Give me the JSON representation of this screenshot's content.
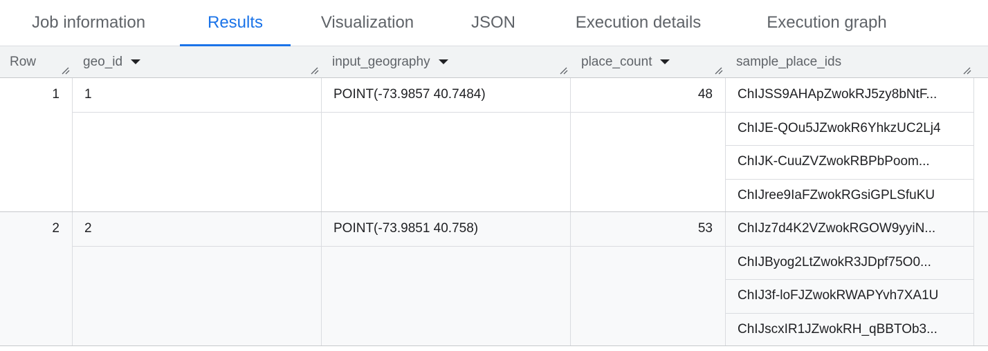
{
  "tabs": [
    {
      "label": "Job information"
    },
    {
      "label": "Results",
      "active": true
    },
    {
      "label": "Visualization"
    },
    {
      "label": "JSON"
    },
    {
      "label": "Execution details"
    },
    {
      "label": "Execution graph"
    }
  ],
  "columns": [
    {
      "label": "Row"
    },
    {
      "label": "geo_id"
    },
    {
      "label": "input_geography"
    },
    {
      "label": "place_count"
    },
    {
      "label": "sample_place_ids"
    }
  ],
  "rows": [
    {
      "row": "1",
      "geo_id": "1",
      "input_geography": "POINT(-73.9857 40.7484)",
      "place_count": "48",
      "sample_place_ids": [
        "ChIJSS9AHApZwokRJ5zy8bNtF...",
        "ChIJE-QOu5JZwokR6YhkzUC2Lj4",
        "ChIJK-CuuZVZwokRBPbPoom...",
        "ChIJree9IaFZwokRGsiGPLSfuKU"
      ]
    },
    {
      "row": "2",
      "geo_id": "2",
      "input_geography": "POINT(-73.9851 40.758)",
      "place_count": "53",
      "sample_place_ids": [
        "ChIJz7d4K2VZwokRGOW9yyiN...",
        "ChIJByog2LtZwokR3JDpf75O0...",
        "ChIJ3f-loFJZwokRWAPYvh7XA1U",
        "ChIJscxIR1JZwokRH_qBBTOb3..."
      ]
    }
  ],
  "colors": {
    "accent": "#1a73e8",
    "header_bg": "#f1f3f4",
    "alt_row_bg": "#f8f9fa"
  }
}
